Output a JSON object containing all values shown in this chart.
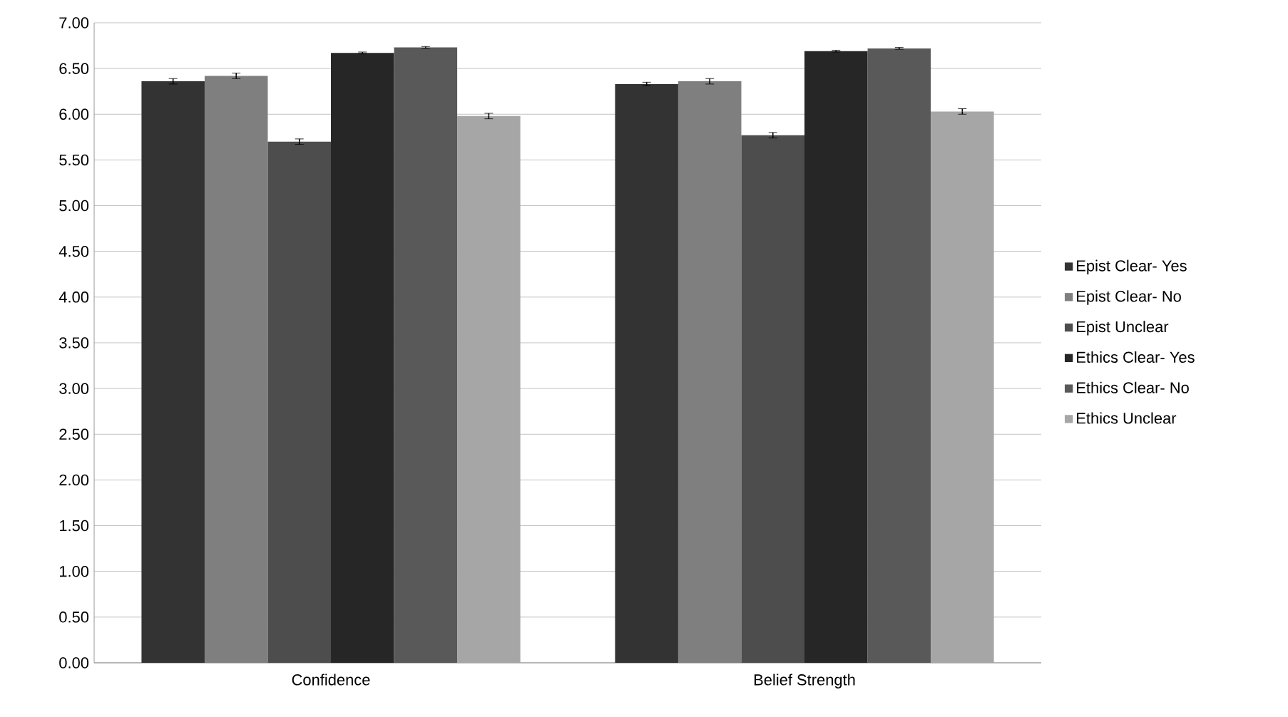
{
  "chart_data": {
    "type": "bar",
    "categories": [
      "Confidence",
      "Belief Strength"
    ],
    "series": [
      {
        "name": "Epist Clear- Yes",
        "color": "#333333",
        "values": [
          6.36,
          6.33
        ],
        "errors": [
          0.03,
          0.02
        ]
      },
      {
        "name": "Epist Clear- No",
        "color": "#7f7f7f",
        "values": [
          6.42,
          6.36
        ],
        "errors": [
          0.03,
          0.03
        ]
      },
      {
        "name": "Epist Unclear",
        "color": "#4d4d4d",
        "values": [
          5.7,
          5.77
        ],
        "errors": [
          0.03,
          0.03
        ]
      },
      {
        "name": "Ethics Clear- Yes",
        "color": "#262626",
        "values": [
          6.67,
          6.69
        ],
        "errors": [
          0.01,
          0.01
        ]
      },
      {
        "name": "Ethics Clear- No",
        "color": "#595959",
        "values": [
          6.73,
          6.72
        ],
        "errors": [
          0.01,
          0.01
        ]
      },
      {
        "name": "Ethics Unclear",
        "color": "#a6a6a6",
        "values": [
          5.98,
          6.03
        ],
        "errors": [
          0.03,
          0.03
        ]
      }
    ],
    "ylim": [
      0,
      7
    ],
    "yticks": [
      {
        "value": 0,
        "label": "0.00"
      },
      {
        "value": 0.5,
        "label": "0.50"
      },
      {
        "value": 1,
        "label": "1.00"
      },
      {
        "value": 1.5,
        "label": "1.50"
      },
      {
        "value": 2,
        "label": "2.00"
      },
      {
        "value": 2.5,
        "label": "2.50"
      },
      {
        "value": 3,
        "label": "3.00"
      },
      {
        "value": 3.5,
        "label": "3.50"
      },
      {
        "value": 4,
        "label": "4.00"
      },
      {
        "value": 4.5,
        "label": "4.50"
      },
      {
        "value": 5,
        "label": "5.00"
      },
      {
        "value": 5.5,
        "label": "5.50"
      },
      {
        "value": 6,
        "label": "6.00"
      },
      {
        "value": 6.5,
        "label": "6.50"
      },
      {
        "value": 7,
        "label": "7.00"
      }
    ],
    "grid": "y",
    "legend": "right"
  }
}
